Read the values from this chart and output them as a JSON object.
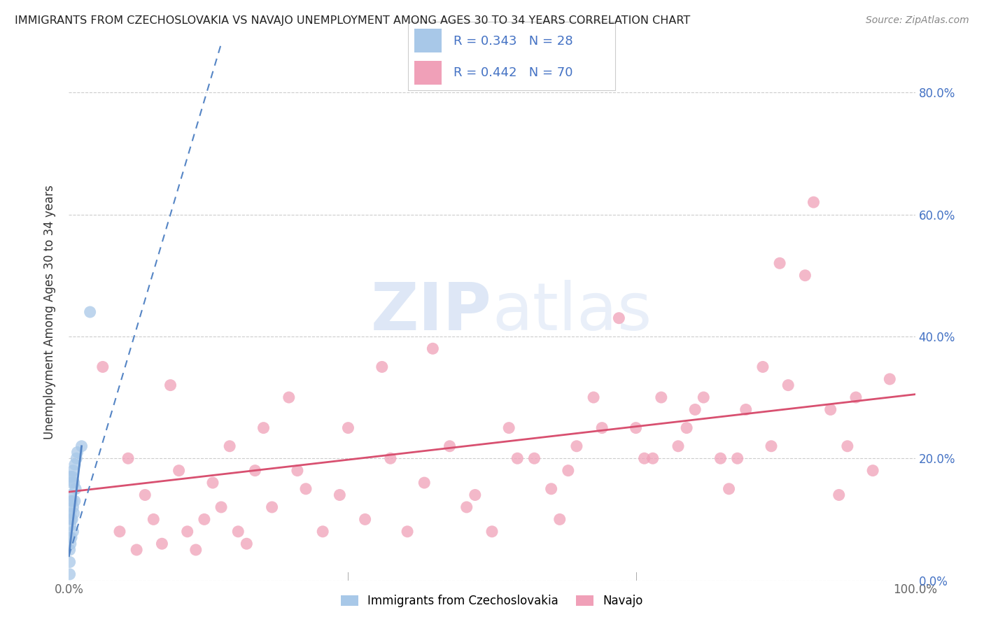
{
  "title": "IMMIGRANTS FROM CZECHOSLOVAKIA VS NAVAJO UNEMPLOYMENT AMONG AGES 30 TO 34 YEARS CORRELATION CHART",
  "source": "Source: ZipAtlas.com",
  "ylabel": "Unemployment Among Ages 30 to 34 years",
  "legend_label1": "Immigrants from Czechoslovakia",
  "legend_label2": "Navajo",
  "R1": 0.343,
  "N1": 28,
  "R2": 0.442,
  "N2": 70,
  "color_blue": "#a8c8e8",
  "color_pink": "#f0a0b8",
  "color_blue_line": "#5585c5",
  "color_pink_line": "#d85070",
  "color_legend_text": "#4472c4",
  "xlim": [
    0,
    1.0
  ],
  "ylim": [
    0,
    0.88
  ],
  "yticks": [
    0.0,
    0.2,
    0.4,
    0.6,
    0.8
  ],
  "ytick_labels": [
    "0.0%",
    "20.0%",
    "40.0%",
    "60.0%",
    "80.0%"
  ],
  "blue_scatter_x": [
    0.001,
    0.001,
    0.001,
    0.001,
    0.002,
    0.002,
    0.002,
    0.002,
    0.002,
    0.003,
    0.003,
    0.003,
    0.003,
    0.004,
    0.004,
    0.004,
    0.005,
    0.005,
    0.005,
    0.006,
    0.006,
    0.007,
    0.007,
    0.008,
    0.009,
    0.01,
    0.015,
    0.025
  ],
  "blue_scatter_y": [
    0.01,
    0.03,
    0.05,
    0.07,
    0.06,
    0.09,
    0.11,
    0.14,
    0.17,
    0.07,
    0.1,
    0.13,
    0.16,
    0.1,
    0.13,
    0.17,
    0.08,
    0.12,
    0.18,
    0.11,
    0.16,
    0.13,
    0.19,
    0.15,
    0.2,
    0.21,
    0.22,
    0.44
  ],
  "pink_scatter_x": [
    0.04,
    0.07,
    0.08,
    0.1,
    0.12,
    0.14,
    0.15,
    0.17,
    0.18,
    0.2,
    0.22,
    0.23,
    0.24,
    0.26,
    0.28,
    0.3,
    0.33,
    0.35,
    0.38,
    0.4,
    0.42,
    0.43,
    0.45,
    0.47,
    0.5,
    0.52,
    0.55,
    0.57,
    0.58,
    0.6,
    0.62,
    0.65,
    0.67,
    0.68,
    0.7,
    0.72,
    0.73,
    0.75,
    0.77,
    0.78,
    0.8,
    0.82,
    0.83,
    0.85,
    0.87,
    0.88,
    0.9,
    0.92,
    0.93,
    0.95,
    0.06,
    0.09,
    0.11,
    0.13,
    0.16,
    0.19,
    0.21,
    0.27,
    0.32,
    0.37,
    0.48,
    0.53,
    0.59,
    0.63,
    0.69,
    0.74,
    0.79,
    0.84,
    0.91,
    0.97
  ],
  "pink_scatter_y": [
    0.35,
    0.2,
    0.05,
    0.1,
    0.32,
    0.08,
    0.05,
    0.16,
    0.12,
    0.08,
    0.18,
    0.25,
    0.12,
    0.3,
    0.15,
    0.08,
    0.25,
    0.1,
    0.2,
    0.08,
    0.16,
    0.38,
    0.22,
    0.12,
    0.08,
    0.25,
    0.2,
    0.15,
    0.1,
    0.22,
    0.3,
    0.43,
    0.25,
    0.2,
    0.3,
    0.22,
    0.25,
    0.3,
    0.2,
    0.15,
    0.28,
    0.35,
    0.22,
    0.32,
    0.5,
    0.62,
    0.28,
    0.22,
    0.3,
    0.18,
    0.08,
    0.14,
    0.06,
    0.18,
    0.1,
    0.22,
    0.06,
    0.18,
    0.14,
    0.35,
    0.14,
    0.2,
    0.18,
    0.25,
    0.2,
    0.28,
    0.2,
    0.52,
    0.14,
    0.33
  ],
  "blue_trend_x": [
    0.0,
    0.025
  ],
  "blue_trend_y_intercept": 0.05,
  "blue_trend_slope": 15.0,
  "pink_trend_x_start": 0.0,
  "pink_trend_x_end": 1.0,
  "pink_trend_y_start": 0.145,
  "pink_trend_y_end": 0.305
}
